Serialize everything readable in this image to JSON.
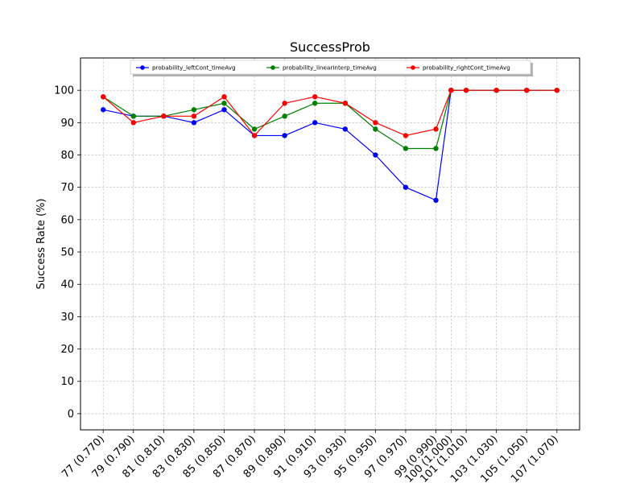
{
  "chart_data": {
    "type": "line",
    "title": "SuccessProb",
    "xlabel": "",
    "ylabel": "Success Rate (%)",
    "categories": [
      "77 (0.770)",
      "79 (0.790)",
      "81 (0.810)",
      "83 (0.830)",
      "85 (0.850)",
      "87 (0.870)",
      "89 (0.890)",
      "91 (0.910)",
      "93 (0.930)",
      "95 (0.950)",
      "97 (0.970)",
      "99 (0.990)",
      "100 (1.000)",
      "101 (1.010)",
      "103 (1.030)",
      "105 (1.050)",
      "107 (1.070)"
    ],
    "x": [
      0.77,
      0.79,
      0.81,
      0.83,
      0.85,
      0.87,
      0.89,
      0.91,
      0.93,
      0.95,
      0.97,
      0.99,
      1.0,
      1.01,
      1.03,
      1.05,
      1.07
    ],
    "xlim": [
      0.755,
      1.085
    ],
    "ylim": [
      -5,
      110
    ],
    "yticks": [
      0,
      10,
      20,
      30,
      40,
      50,
      60,
      70,
      80,
      90,
      100
    ],
    "grid": true,
    "legend_position": "top",
    "series": [
      {
        "name": "probability_leftCont_timeAvg",
        "color": "#0000ff",
        "values": [
          94,
          92,
          92,
          90,
          94,
          86,
          86,
          90,
          88,
          80,
          70,
          66,
          100,
          100,
          100,
          100,
          100
        ]
      },
      {
        "name": "probability_linearInterp_timeAvg",
        "color": "#008000",
        "values": [
          98,
          92,
          92,
          94,
          96,
          88,
          92,
          96,
          96,
          88,
          82,
          82,
          100,
          100,
          100,
          100,
          100
        ]
      },
      {
        "name": "probability_rightCont_timeAvg",
        "color": "#ff0000",
        "values": [
          98,
          90,
          92,
          92,
          98,
          86,
          96,
          98,
          96,
          90,
          86,
          88,
          100,
          100,
          100,
          100,
          100
        ]
      }
    ]
  }
}
